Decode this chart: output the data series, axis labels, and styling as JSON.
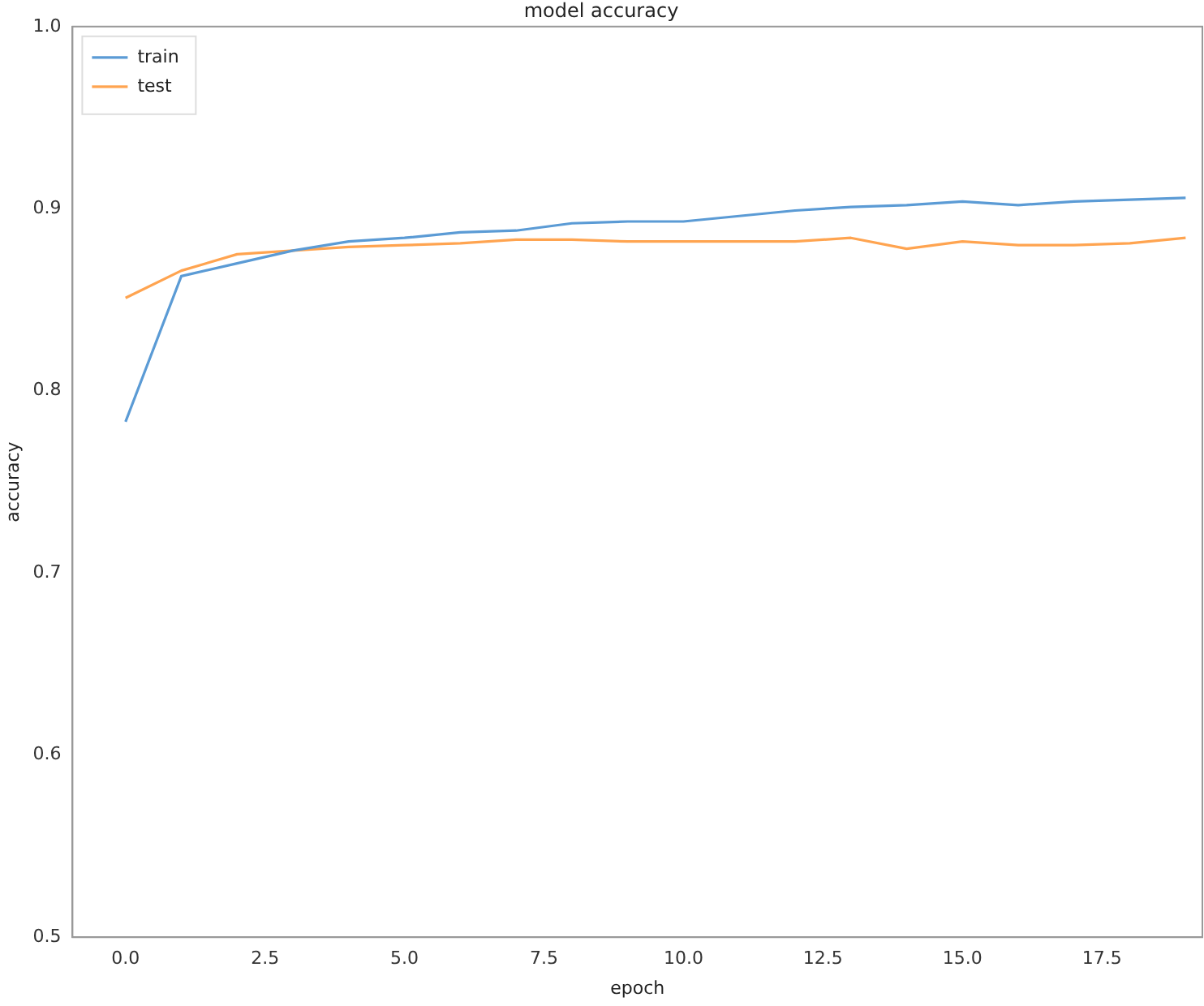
{
  "chart_data": {
    "type": "line",
    "title": "model accuracy",
    "xlabel": "epoch",
    "ylabel": "accuracy",
    "x": [
      0,
      1,
      2,
      3,
      4,
      5,
      6,
      7,
      8,
      9,
      10,
      11,
      12,
      13,
      14,
      15,
      16,
      17,
      18,
      19
    ],
    "series": [
      {
        "name": "train",
        "color": "#5b9bd5",
        "values": [
          0.783,
          0.863,
          0.87,
          0.877,
          0.882,
          0.884,
          0.887,
          0.888,
          0.892,
          0.893,
          0.893,
          0.896,
          0.899,
          0.901,
          0.902,
          0.904,
          0.902,
          0.904,
          0.905,
          0.906
        ]
      },
      {
        "name": "test",
        "color": "#ffa450",
        "values": [
          0.851,
          0.866,
          0.875,
          0.877,
          0.879,
          0.88,
          0.881,
          0.883,
          0.883,
          0.882,
          0.882,
          0.882,
          0.882,
          0.884,
          0.878,
          0.882,
          0.88,
          0.88,
          0.881,
          0.884
        ]
      }
    ],
    "xlim": [
      -0.95,
      19.3
    ],
    "xticks": [
      {
        "value": 0,
        "label": "0.0"
      },
      {
        "value": 2.5,
        "label": "2.5"
      },
      {
        "value": 5,
        "label": "5.0"
      },
      {
        "value": 7.5,
        "label": "7.5"
      },
      {
        "value": 10,
        "label": "10.0"
      },
      {
        "value": 12.5,
        "label": "12.5"
      },
      {
        "value": 15,
        "label": "15.0"
      },
      {
        "value": 17.5,
        "label": "17.5"
      }
    ],
    "ylim": [
      0.5,
      1.0
    ],
    "yticks": [
      {
        "value": 0.5,
        "label": "0.5"
      },
      {
        "value": 0.6,
        "label": "0.6"
      },
      {
        "value": 0.7,
        "label": "0.7"
      },
      {
        "value": 0.8,
        "label": "0.8"
      },
      {
        "value": 0.9,
        "label": "0.9"
      },
      {
        "value": 1.0,
        "label": "1.0"
      }
    ],
    "grid": false,
    "legend": "top left",
    "marker": "none",
    "line_style": "solid"
  }
}
